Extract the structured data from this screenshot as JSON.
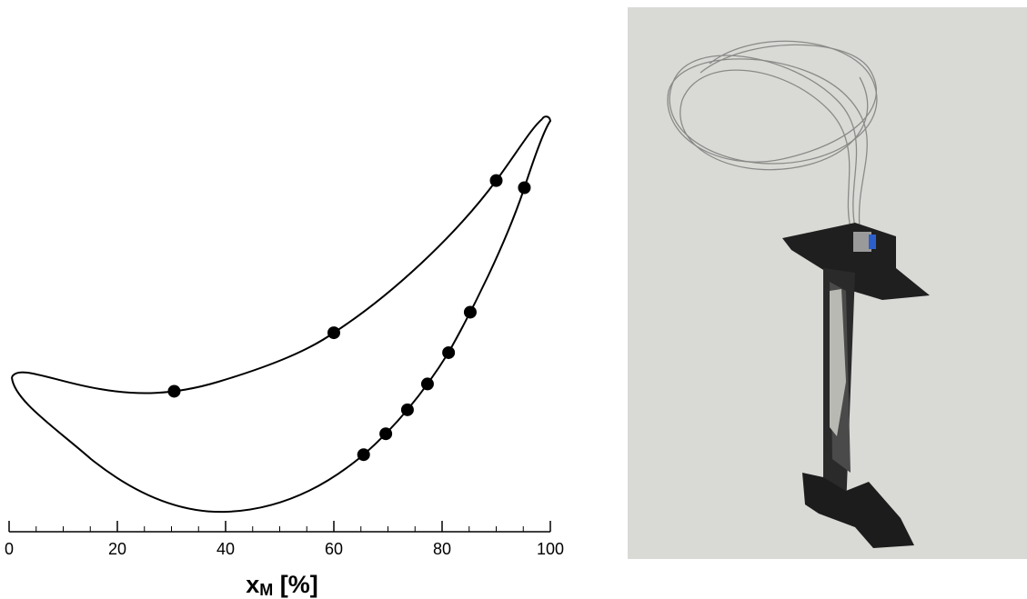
{
  "chart_data": {
    "type": "scatter",
    "xlabel": [
      "x",
      "M",
      " [%]"
    ],
    "xlim": [
      0,
      100
    ],
    "xticks": [
      0,
      20,
      40,
      60,
      80,
      100
    ],
    "xminorticks": [
      5,
      10,
      15,
      25,
      30,
      35,
      45,
      50,
      55,
      65,
      70,
      75,
      85,
      90,
      95
    ],
    "color": "#000000",
    "series": [
      {
        "x": [
          30.5,
          60,
          90
        ]
      },
      {
        "x": [
          65.5,
          69.6,
          73.6,
          77.3,
          81.2,
          85.2,
          95.2
        ]
      }
    ]
  }
}
